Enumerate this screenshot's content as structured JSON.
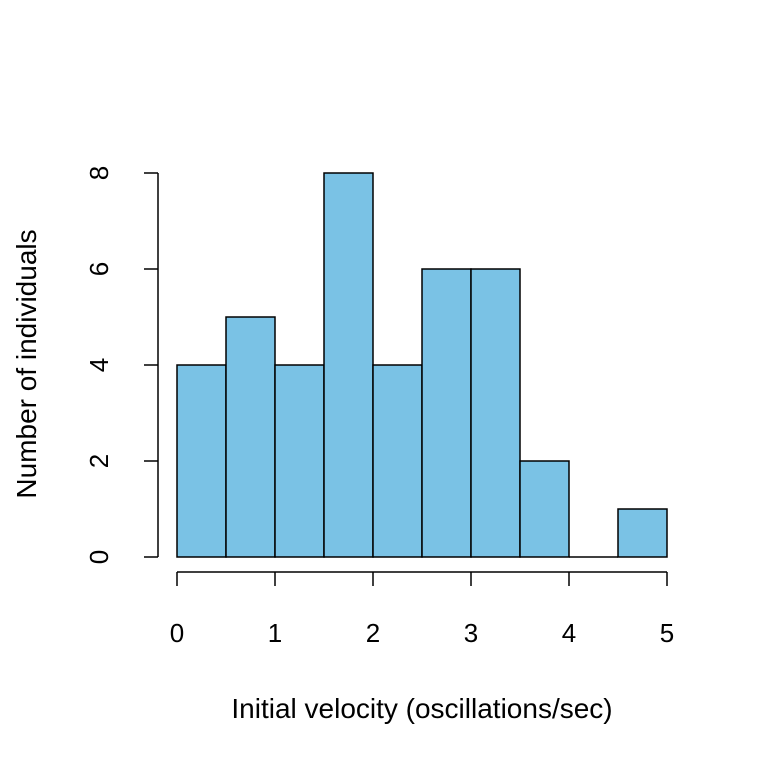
{
  "chart_data": {
    "type": "bar",
    "title": "",
    "xlabel": "Initial velocity (oscillations/sec)",
    "ylabel": "Number of individuals",
    "bins": [
      {
        "start": 0.0,
        "end": 0.5,
        "count": 4
      },
      {
        "start": 0.5,
        "end": 1.0,
        "count": 5
      },
      {
        "start": 1.0,
        "end": 1.5,
        "count": 4
      },
      {
        "start": 1.5,
        "end": 2.0,
        "count": 8
      },
      {
        "start": 2.0,
        "end": 2.5,
        "count": 4
      },
      {
        "start": 2.5,
        "end": 3.0,
        "count": 6
      },
      {
        "start": 3.0,
        "end": 3.5,
        "count": 6
      },
      {
        "start": 3.5,
        "end": 4.0,
        "count": 2
      },
      {
        "start": 4.0,
        "end": 4.5,
        "count": 0
      },
      {
        "start": 4.5,
        "end": 5.0,
        "count": 1
      }
    ],
    "xlim": [
      0,
      5
    ],
    "ylim": [
      0,
      8
    ],
    "xticks": [
      "0",
      "1",
      "2",
      "3",
      "4",
      "5"
    ],
    "yticks": [
      "0",
      "2",
      "4",
      "6",
      "8"
    ],
    "grid": false,
    "bar_color": "#7AC2E5",
    "edge_color": "#000000"
  }
}
